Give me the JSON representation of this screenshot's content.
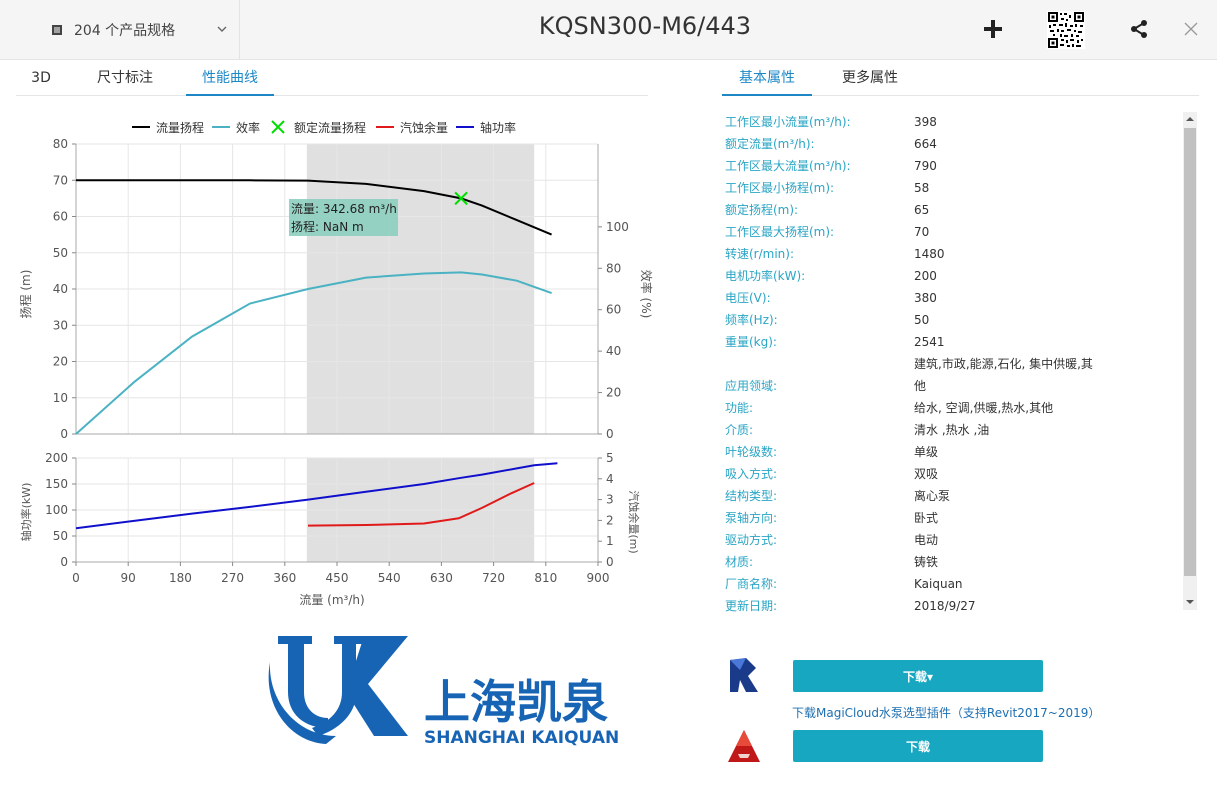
{
  "header": {
    "spec_count": "204 个产品规格",
    "title": "KQSN300-M6/443"
  },
  "left_tabs": [
    "3D",
    "尺寸标注",
    "性能曲线"
  ],
  "right_tabs": [
    "基本属性",
    "更多属性"
  ],
  "legend": [
    "流量扬程",
    "效率",
    "额定流量扬程",
    "汽蚀余量",
    "轴功率"
  ],
  "tooltip": {
    "line1": "流量: 342.68 m³/h",
    "line2": "扬程:  NaN m"
  },
  "axis_labels": {
    "head": "扬程 (m)",
    "efficiency": "效率 (%)",
    "power": "轴功率(kW)",
    "npsh": "汽蚀余量(m)",
    "flow": "流量 (m³/h)"
  },
  "chart_data": [
    {
      "type": "line",
      "x": [
        0,
        100,
        200,
        300,
        400,
        500,
        600,
        664,
        700,
        760,
        820
      ],
      "series": [
        {
          "name": "流量扬程",
          "values": [
            70,
            70,
            70,
            70,
            69.9,
            69,
            67,
            65,
            63,
            59,
            55
          ],
          "axis": "left"
        },
        {
          "name": "效率",
          "values": [
            0,
            25,
            47,
            63,
            70,
            75.5,
            77.5,
            78,
            77,
            74,
            68
          ],
          "axis": "right"
        },
        {
          "name": "额定流量扬程",
          "points": [
            [
              664,
              65
            ]
          ]
        }
      ],
      "xlim": [
        0,
        900
      ],
      "ylim": [
        0,
        80
      ],
      "y2lim": [
        0,
        140
      ],
      "xticks": [
        0,
        90,
        180,
        270,
        360,
        450,
        540,
        630,
        720,
        810,
        900
      ],
      "yticks": [
        0,
        10,
        20,
        30,
        40,
        50,
        60,
        70,
        80
      ],
      "y2ticks": [
        0,
        20,
        40,
        60,
        80,
        100
      ],
      "shade": [
        398,
        790
      ],
      "ylabel": "扬程 (m)",
      "y2label": "效率 (%)"
    },
    {
      "type": "line",
      "x": [
        0,
        100,
        200,
        300,
        400,
        500,
        600,
        664,
        700,
        760,
        790,
        830
      ],
      "series": [
        {
          "name": "轴功率",
          "values": [
            65,
            79,
            93,
            106,
            120,
            135,
            150,
            162,
            168,
            180,
            186,
            190
          ],
          "axis": "left"
        },
        {
          "name": "汽蚀余量",
          "x": [
            400,
            500,
            600,
            660,
            700,
            750,
            790
          ],
          "values": [
            1.75,
            1.78,
            1.85,
            2.1,
            2.6,
            3.3,
            3.8
          ],
          "axis": "right"
        }
      ],
      "xlim": [
        0,
        900
      ],
      "ylim": [
        0,
        200
      ],
      "y2lim": [
        0,
        5
      ],
      "xticks": [
        0,
        90,
        180,
        270,
        360,
        450,
        540,
        630,
        720,
        810,
        900
      ],
      "yticks": [
        0,
        50,
        100,
        150,
        200
      ],
      "y2ticks": [
        0,
        1,
        2,
        3,
        4,
        5
      ],
      "shade": [
        398,
        790
      ],
      "xlabel": "流量 (m³/h)",
      "ylabel": "轴功率(kW)",
      "y2label": "汽蚀余量(m)"
    }
  ],
  "colors": {
    "head": "#000000",
    "efficiency": "#4ab2c3",
    "rated": "#00dd00",
    "npsh": "#e01a1a",
    "power": "#1010cc",
    "accent": "#1e88c7",
    "button": "#17a7c0"
  },
  "properties": [
    {
      "label": "工作区最小流量(m³/h):",
      "value": "398"
    },
    {
      "label": "额定流量(m³/h):",
      "value": "664"
    },
    {
      "label": "工作区最大流量(m³/h):",
      "value": "790"
    },
    {
      "label": "工作区最小扬程(m):",
      "value": "58"
    },
    {
      "label": "额定扬程(m):",
      "value": "65"
    },
    {
      "label": "工作区最大扬程(m):",
      "value": "70"
    },
    {
      "label": "转速(r/min):",
      "value": "1480"
    },
    {
      "label": "电机功率(kW):",
      "value": "200"
    },
    {
      "label": "电压(V):",
      "value": "380"
    },
    {
      "label": "频率(Hz):",
      "value": "50"
    },
    {
      "label": "重量(kg):",
      "value": "2541"
    },
    {
      "label": "应用领域:",
      "value": "建筑,市政,能源,石化, 集中供暖,其他"
    },
    {
      "label": "功能:",
      "value": "给水, 空调,供暖,热水,其他"
    },
    {
      "label": "介质:",
      "value": "清水 ,热水 ,油"
    },
    {
      "label": "叶轮级数:",
      "value": "单级"
    },
    {
      "label": "吸入方式:",
      "value": "双吸"
    },
    {
      "label": "结构类型:",
      "value": "离心泵"
    },
    {
      "label": "泵轴方向:",
      "value": "卧式"
    },
    {
      "label": "驱动方式:",
      "value": "电动"
    },
    {
      "label": "材质:",
      "value": "铸铁"
    },
    {
      "label": "厂商名称:",
      "value": "Kaiquan"
    },
    {
      "label": "更新日期:",
      "value": "2018/9/27"
    }
  ],
  "logo": {
    "cn": "上海凯泉",
    "en": "SHANGHAI KAIQUAN"
  },
  "downloads": {
    "revit_button": "下载▾",
    "revit_link": "下载MagiCloud水泵选型插件（支持Revit2017~2019）",
    "autocad_button": "下载"
  }
}
